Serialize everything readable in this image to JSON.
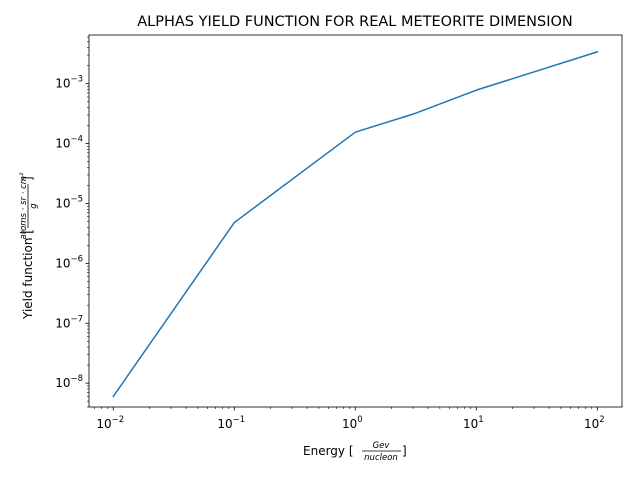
{
  "chart_data": {
    "type": "line",
    "title": "ALPHAS YIELD FUNCTION FOR REAL METEORITE DIMENSION",
    "xlabel": {
      "prefix": "Energy [",
      "numerator": "Gev",
      "denominator": "nucleon",
      "suffix": "]"
    },
    "ylabel": {
      "prefix": "Yield function [",
      "numerator": "atoms · sr · cm²",
      "denominator": "g",
      "suffix": "]"
    },
    "xscale": "log",
    "yscale": "log",
    "xlim": [
      0.0063,
      160
    ],
    "ylim": [
      4e-09,
      0.0065
    ],
    "x_ticks": [
      {
        "value": 0.01,
        "base": "10",
        "exp": "−2"
      },
      {
        "value": 0.1,
        "base": "10",
        "exp": "−1"
      },
      {
        "value": 1,
        "base": "10",
        "exp": "0"
      },
      {
        "value": 10,
        "base": "10",
        "exp": "1"
      },
      {
        "value": 100,
        "base": "10",
        "exp": "2"
      }
    ],
    "y_ticks": [
      {
        "value": 1e-08,
        "base": "10",
        "exp": "−8"
      },
      {
        "value": 1e-07,
        "base": "10",
        "exp": "−7"
      },
      {
        "value": 1e-06,
        "base": "10",
        "exp": "−6"
      },
      {
        "value": 1e-05,
        "base": "10",
        "exp": "−5"
      },
      {
        "value": 0.0001,
        "base": "10",
        "exp": "−4"
      },
      {
        "value": 0.001,
        "base": "10",
        "exp": "−3"
      }
    ],
    "series": [
      {
        "color": "#1f77b4",
        "x": [
          0.01,
          0.1,
          1,
          3,
          10,
          100
        ],
        "y": [
          6e-09,
          4.8e-06,
          0.000155,
          0.00031,
          0.00078,
          0.0034
        ]
      }
    ],
    "grid": false,
    "legend": null
  }
}
